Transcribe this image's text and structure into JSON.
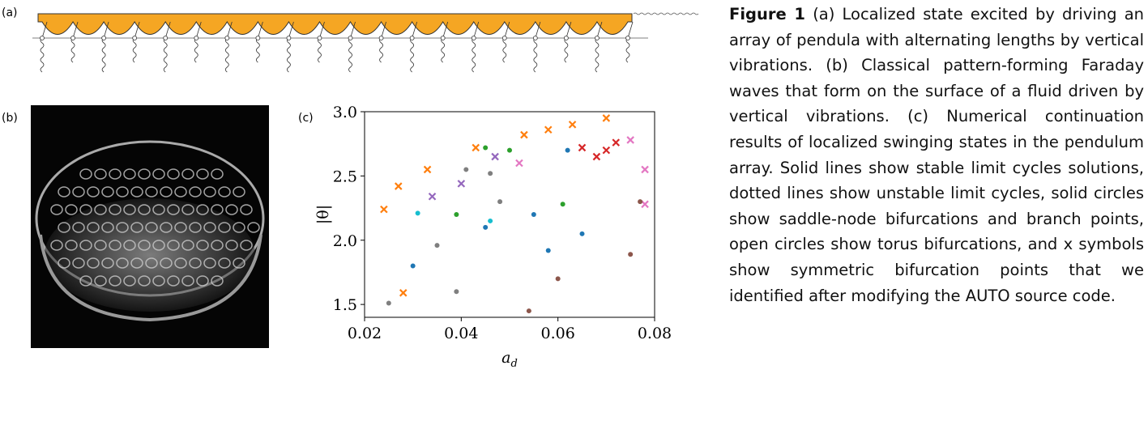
{
  "panels": {
    "a": "(a)",
    "b": "(b)",
    "c": "(c)"
  },
  "caption": {
    "label": "Figure 1",
    "text": "(a) Localized state excited by driving an array of pendula with alternating lengths by vertical vibrations. (b) Classical pattern-forming Faraday waves that form on the surface of a fluid driven by vertical vibrations. (c) Numerical continuation results of localized swinging states in the pendulum array. Solid lines show stable limit cycles solutions, dotted lines show unstable limit cycles, solid circles show saddle-node bifurcations and branch points, open circles show torus bifurcations, and x symbols show symmetric bifurcation points that we identified after modifying the AUTO source code."
  },
  "chart_data": {
    "type": "scatter",
    "x_label": "a",
    "x_label_sub": "d",
    "y_label": "|θ|",
    "xlim": [
      0.02,
      0.08
    ],
    "ylim": [
      1.4,
      3.0
    ],
    "xticks": [
      0.02,
      0.04,
      0.06,
      0.08
    ],
    "yticks": [
      1.5,
      {
        "value": 2,
        "label": "2.0"
      },
      2.5,
      {
        "value": 3,
        "label": "3.0"
      }
    ],
    "series": [
      {
        "color": "#ff7f0e",
        "marker": "x",
        "x": [
          0.024,
          0.027,
          0.033,
          0.043,
          0.053,
          0.058,
          0.063,
          0.07,
          0.028
        ],
        "values": [
          2.24,
          2.42,
          2.55,
          2.72,
          2.82,
          2.86,
          2.9,
          2.95,
          1.59
        ]
      },
      {
        "color": "#7f7f7f",
        "marker": "o",
        "x": [
          0.041,
          0.046,
          0.048,
          0.035,
          0.039,
          0.025
        ],
        "values": [
          2.55,
          2.52,
          2.3,
          1.96,
          1.6,
          1.51
        ]
      },
      {
        "color": "#1f77b4",
        "marker": "o",
        "x": [
          0.03,
          0.045,
          0.055,
          0.065,
          0.062,
          0.058
        ],
        "values": [
          1.8,
          2.1,
          2.2,
          2.05,
          2.7,
          1.92
        ]
      },
      {
        "color": "#2ca02c",
        "marker": "o",
        "x": [
          0.045,
          0.05,
          0.039,
          0.061
        ],
        "values": [
          2.72,
          2.7,
          2.2,
          2.28
        ]
      },
      {
        "color": "#d62728",
        "marker": "x",
        "x": [
          0.065,
          0.07,
          0.072,
          0.068
        ],
        "values": [
          2.72,
          2.7,
          2.76,
          2.65
        ]
      },
      {
        "color": "#e377c2",
        "marker": "x",
        "x": [
          0.075,
          0.078,
          0.052,
          0.078
        ],
        "values": [
          2.78,
          2.55,
          2.6,
          2.28
        ]
      },
      {
        "color": "#9467bd",
        "marker": "x",
        "x": [
          0.034,
          0.047,
          0.04
        ],
        "values": [
          2.34,
          2.65,
          2.44
        ]
      },
      {
        "color": "#8c564b",
        "marker": "o",
        "x": [
          0.054,
          0.077,
          0.06,
          0.075
        ],
        "values": [
          1.45,
          2.3,
          1.7,
          1.89
        ]
      },
      {
        "color": "#17becf",
        "marker": "o",
        "x": [
          0.031,
          0.046
        ],
        "values": [
          2.21,
          2.15
        ]
      }
    ]
  }
}
